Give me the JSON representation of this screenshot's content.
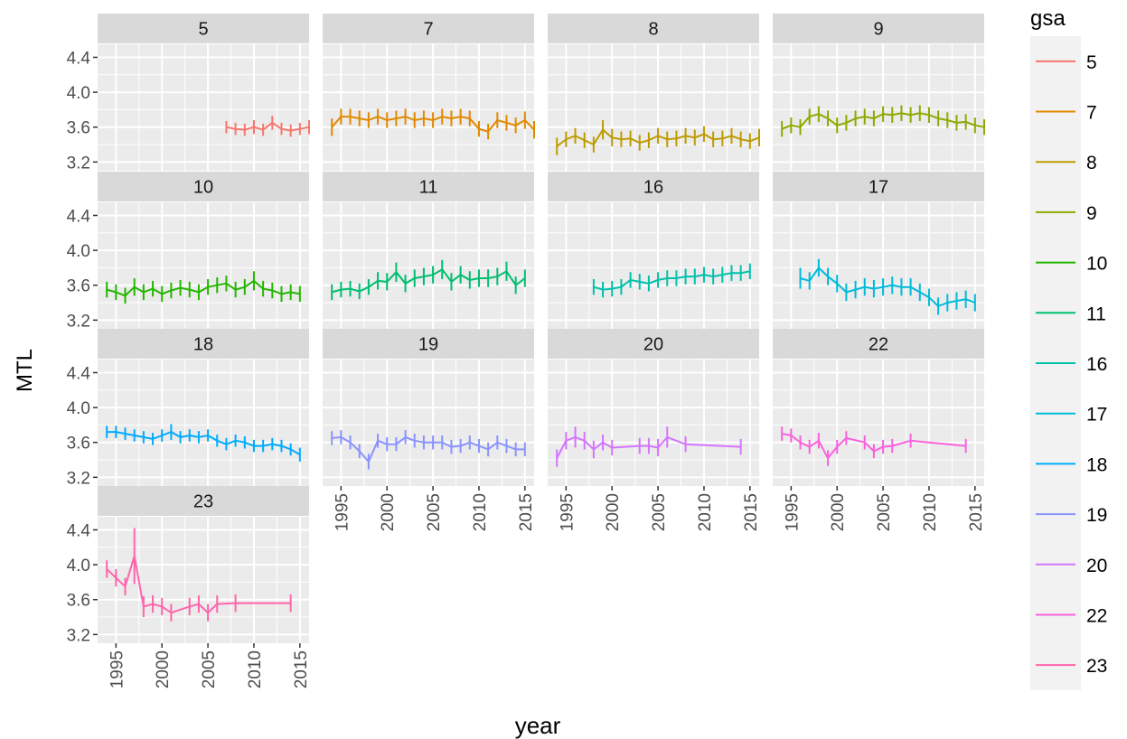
{
  "chart_data": {
    "type": "line",
    "facet_by": "gsa",
    "xlabel": "year",
    "ylabel": "MTL",
    "xlim": [
      1993,
      2016
    ],
    "ylim": [
      3.1,
      4.55
    ],
    "x_ticks": [
      1995,
      2000,
      2005,
      2010,
      2015
    ],
    "x_tick_labels": [
      "1995",
      "2000",
      "2005",
      "2010",
      "2015"
    ],
    "y_ticks": [
      3.2,
      3.6,
      4.0,
      4.4
    ],
    "y_tick_labels": [
      "3.2",
      "3.6",
      "4.0",
      "4.4"
    ],
    "grid": true,
    "error_bars": true,
    "legend": {
      "title": "gsa",
      "position": "right",
      "entries": [
        "5",
        "7",
        "8",
        "9",
        "10",
        "11",
        "16",
        "17",
        "18",
        "19",
        "20",
        "22",
        "23"
      ]
    },
    "panels": [
      {
        "label": "5",
        "color": "#F8766D",
        "x": [
          2007,
          2008,
          2009,
          2010,
          2011,
          2012,
          2013,
          2014,
          2015,
          2016
        ],
        "y": [
          3.6,
          3.58,
          3.57,
          3.6,
          3.57,
          3.65,
          3.58,
          3.56,
          3.58,
          3.6
        ],
        "err": [
          0.07,
          0.07,
          0.07,
          0.08,
          0.07,
          0.08,
          0.07,
          0.07,
          0.07,
          0.08
        ]
      },
      {
        "label": "7",
        "color": "#E18A00",
        "x": [
          1994,
          1995,
          1996,
          1997,
          1998,
          1999,
          2000,
          2001,
          2002,
          2003,
          2004,
          2005,
          2006,
          2007,
          2008,
          2009,
          2010,
          2011,
          2012,
          2013,
          2014,
          2015,
          2016
        ],
        "y": [
          3.6,
          3.72,
          3.72,
          3.7,
          3.68,
          3.72,
          3.68,
          3.7,
          3.72,
          3.68,
          3.7,
          3.68,
          3.72,
          3.7,
          3.72,
          3.7,
          3.58,
          3.55,
          3.68,
          3.65,
          3.62,
          3.68,
          3.57
        ],
        "err": [
          0.1,
          0.09,
          0.09,
          0.09,
          0.09,
          0.09,
          0.09,
          0.09,
          0.09,
          0.09,
          0.09,
          0.09,
          0.09,
          0.09,
          0.09,
          0.09,
          0.09,
          0.09,
          0.09,
          0.09,
          0.09,
          0.1,
          0.1
        ]
      },
      {
        "label": "8",
        "color": "#BE9C00",
        "x": [
          1994,
          1995,
          1996,
          1997,
          1998,
          1999,
          2000,
          2001,
          2002,
          2003,
          2004,
          2005,
          2006,
          2007,
          2008,
          2009,
          2010,
          2011,
          2012,
          2013,
          2014,
          2015,
          2016
        ],
        "y": [
          3.38,
          3.46,
          3.5,
          3.45,
          3.4,
          3.57,
          3.48,
          3.46,
          3.47,
          3.42,
          3.45,
          3.5,
          3.46,
          3.47,
          3.5,
          3.48,
          3.52,
          3.46,
          3.47,
          3.5,
          3.46,
          3.44,
          3.48
        ],
        "err": [
          0.1,
          0.09,
          0.09,
          0.09,
          0.09,
          0.11,
          0.1,
          0.09,
          0.09,
          0.09,
          0.09,
          0.09,
          0.09,
          0.09,
          0.09,
          0.09,
          0.09,
          0.09,
          0.09,
          0.09,
          0.09,
          0.09,
          0.1
        ]
      },
      {
        "label": "9",
        "color": "#8CAB00",
        "x": [
          1994,
          1995,
          1996,
          1997,
          1998,
          1999,
          2000,
          2001,
          2002,
          2003,
          2004,
          2005,
          2006,
          2007,
          2008,
          2009,
          2010,
          2011,
          2012,
          2013,
          2014,
          2015,
          2016
        ],
        "y": [
          3.58,
          3.62,
          3.6,
          3.72,
          3.75,
          3.7,
          3.62,
          3.65,
          3.7,
          3.72,
          3.7,
          3.75,
          3.74,
          3.76,
          3.74,
          3.76,
          3.74,
          3.7,
          3.68,
          3.65,
          3.66,
          3.62,
          3.6
        ],
        "err": [
          0.09,
          0.09,
          0.09,
          0.09,
          0.09,
          0.09,
          0.09,
          0.09,
          0.09,
          0.09,
          0.09,
          0.09,
          0.09,
          0.09,
          0.09,
          0.09,
          0.09,
          0.09,
          0.09,
          0.09,
          0.09,
          0.09,
          0.09
        ]
      },
      {
        "label": "10",
        "color": "#24B700",
        "x": [
          1994,
          1995,
          1996,
          1997,
          1998,
          1999,
          2000,
          2001,
          2002,
          2003,
          2004,
          2005,
          2006,
          2007,
          2008,
          2009,
          2010,
          2011,
          2012,
          2013,
          2014,
          2015
        ],
        "y": [
          3.55,
          3.52,
          3.48,
          3.58,
          3.52,
          3.56,
          3.5,
          3.54,
          3.57,
          3.55,
          3.52,
          3.58,
          3.6,
          3.62,
          3.55,
          3.58,
          3.65,
          3.56,
          3.54,
          3.5,
          3.52,
          3.5
        ],
        "err": [
          0.09,
          0.09,
          0.09,
          0.1,
          0.09,
          0.09,
          0.09,
          0.09,
          0.09,
          0.09,
          0.09,
          0.09,
          0.09,
          0.09,
          0.09,
          0.09,
          0.11,
          0.09,
          0.09,
          0.09,
          0.09,
          0.09
        ]
      },
      {
        "label": "11",
        "color": "#00BE70",
        "x": [
          1994,
          1995,
          1996,
          1997,
          1998,
          1999,
          2000,
          2001,
          2002,
          2003,
          2004,
          2005,
          2006,
          2007,
          2008,
          2009,
          2010,
          2011,
          2012,
          2013,
          2014,
          2015
        ],
        "y": [
          3.52,
          3.55,
          3.56,
          3.53,
          3.58,
          3.65,
          3.64,
          3.75,
          3.62,
          3.68,
          3.7,
          3.72,
          3.78,
          3.64,
          3.72,
          3.66,
          3.68,
          3.68,
          3.7,
          3.76,
          3.6,
          3.68
        ],
        "err": [
          0.09,
          0.09,
          0.09,
          0.09,
          0.09,
          0.1,
          0.1,
          0.11,
          0.1,
          0.1,
          0.1,
          0.1,
          0.11,
          0.1,
          0.1,
          0.1,
          0.1,
          0.1,
          0.1,
          0.11,
          0.1,
          0.1
        ]
      },
      {
        "label": "16",
        "color": "#00C1AB",
        "x": [
          1998,
          1999,
          2000,
          2001,
          2002,
          2003,
          2004,
          2005,
          2006,
          2007,
          2008,
          2009,
          2010,
          2011,
          2012,
          2013,
          2014,
          2015
        ],
        "y": [
          3.58,
          3.55,
          3.56,
          3.58,
          3.66,
          3.64,
          3.62,
          3.66,
          3.68,
          3.68,
          3.7,
          3.7,
          3.72,
          3.7,
          3.72,
          3.74,
          3.74,
          3.76
        ],
        "err": [
          0.09,
          0.09,
          0.09,
          0.09,
          0.09,
          0.09,
          0.09,
          0.09,
          0.09,
          0.09,
          0.09,
          0.09,
          0.09,
          0.09,
          0.09,
          0.09,
          0.09,
          0.09
        ]
      },
      {
        "label": "17",
        "color": "#00BBDA",
        "x": [
          1996,
          1997,
          1998,
          1999,
          2000,
          2001,
          2002,
          2003,
          2004,
          2005,
          2006,
          2007,
          2008,
          2009,
          2010,
          2011,
          2012,
          2013,
          2014,
          2015
        ],
        "y": [
          3.68,
          3.65,
          3.8,
          3.7,
          3.62,
          3.52,
          3.55,
          3.58,
          3.56,
          3.58,
          3.6,
          3.58,
          3.58,
          3.52,
          3.46,
          3.36,
          3.4,
          3.42,
          3.44,
          3.4
        ],
        "err": [
          0.12,
          0.1,
          0.1,
          0.1,
          0.1,
          0.1,
          0.1,
          0.1,
          0.1,
          0.1,
          0.1,
          0.1,
          0.1,
          0.1,
          0.1,
          0.1,
          0.1,
          0.1,
          0.1,
          0.1
        ]
      },
      {
        "label": "18",
        "color": "#00ACFC",
        "x": [
          1994,
          1995,
          1996,
          1997,
          1998,
          1999,
          2000,
          2001,
          2002,
          2003,
          2004,
          2005,
          2006,
          2007,
          2008,
          2009,
          2010,
          2011,
          2012,
          2013,
          2014,
          2015
        ],
        "y": [
          3.72,
          3.72,
          3.7,
          3.68,
          3.66,
          3.64,
          3.68,
          3.72,
          3.66,
          3.68,
          3.66,
          3.68,
          3.62,
          3.58,
          3.62,
          3.6,
          3.56,
          3.56,
          3.58,
          3.56,
          3.52,
          3.46
        ],
        "err": [
          0.07,
          0.07,
          0.07,
          0.07,
          0.07,
          0.07,
          0.07,
          0.09,
          0.07,
          0.07,
          0.07,
          0.07,
          0.07,
          0.07,
          0.07,
          0.07,
          0.07,
          0.07,
          0.07,
          0.07,
          0.07,
          0.08
        ]
      },
      {
        "label": "19",
        "color": "#8B93FF",
        "x": [
          1994,
          1995,
          1996,
          1997,
          1998,
          1999,
          2000,
          2001,
          2002,
          2003,
          2004,
          2005,
          2006,
          2007,
          2008,
          2009,
          2010,
          2011,
          2012,
          2013,
          2014,
          2015
        ],
        "y": [
          3.65,
          3.66,
          3.6,
          3.5,
          3.38,
          3.62,
          3.58,
          3.58,
          3.66,
          3.62,
          3.6,
          3.6,
          3.6,
          3.55,
          3.56,
          3.6,
          3.56,
          3.52,
          3.6,
          3.56,
          3.52,
          3.52
        ],
        "err": [
          0.08,
          0.08,
          0.08,
          0.08,
          0.09,
          0.08,
          0.08,
          0.08,
          0.08,
          0.08,
          0.08,
          0.08,
          0.08,
          0.08,
          0.08,
          0.08,
          0.08,
          0.08,
          0.08,
          0.08,
          0.08,
          0.08
        ]
      },
      {
        "label": "20",
        "color": "#D575FE",
        "x": [
          1994,
          1995,
          1996,
          1997,
          1998,
          1999,
          2000,
          2003,
          2004,
          2005,
          2006,
          2008,
          2014
        ],
        "y": [
          3.42,
          3.62,
          3.66,
          3.62,
          3.52,
          3.6,
          3.54,
          3.56,
          3.56,
          3.54,
          3.66,
          3.58,
          3.55
        ],
        "err": [
          0.1,
          0.1,
          0.12,
          0.1,
          0.1,
          0.09,
          0.09,
          0.09,
          0.09,
          0.1,
          0.12,
          0.09,
          0.09
        ]
      },
      {
        "label": "22",
        "color": "#F962DD",
        "x": [
          1994,
          1995,
          1996,
          1997,
          1998,
          1999,
          2000,
          2001,
          2003,
          2004,
          2005,
          2006,
          2008,
          2014
        ],
        "y": [
          3.7,
          3.68,
          3.6,
          3.55,
          3.62,
          3.42,
          3.55,
          3.65,
          3.6,
          3.5,
          3.55,
          3.56,
          3.62,
          3.56
        ],
        "err": [
          0.08,
          0.08,
          0.08,
          0.08,
          0.09,
          0.09,
          0.08,
          0.08,
          0.08,
          0.08,
          0.08,
          0.08,
          0.08,
          0.08
        ]
      },
      {
        "label": "23",
        "color": "#FF65AC",
        "x": [
          1994,
          1995,
          1996,
          1997,
          1998,
          1999,
          2000,
          2001,
          2003,
          2004,
          2005,
          2006,
          2008,
          2014
        ],
        "y": [
          3.95,
          3.85,
          3.75,
          4.1,
          3.52,
          3.55,
          3.52,
          3.45,
          3.52,
          3.55,
          3.45,
          3.55,
          3.56,
          3.56
        ],
        "err": [
          0.1,
          0.1,
          0.1,
          0.32,
          0.12,
          0.1,
          0.1,
          0.1,
          0.1,
          0.1,
          0.1,
          0.1,
          0.1,
          0.1
        ]
      }
    ]
  }
}
